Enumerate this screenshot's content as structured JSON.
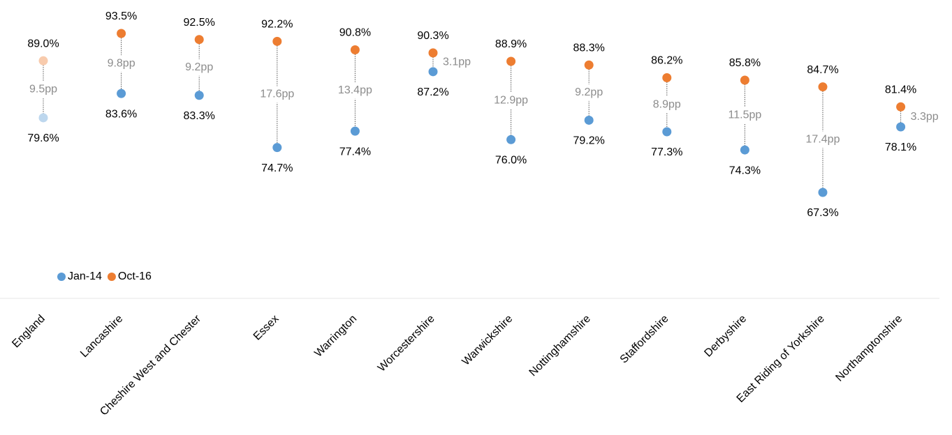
{
  "chart_data": {
    "type": "dumbbell",
    "categories": [
      "England",
      "Lancashire",
      "Cheshire West and Chester",
      "Essex",
      "Warrington",
      "Worcestershire",
      "Warwickshire",
      "Nottinghamshire",
      "Staffordshire",
      "Derbyshire",
      "East Riding of Yorkshire",
      "Northamptonshire"
    ],
    "series": [
      {
        "name": "Jan-14",
        "color": "#5b9bd5",
        "colors": [
          "#bdd7ee",
          "#5b9bd5",
          "#5b9bd5",
          "#5b9bd5",
          "#5b9bd5",
          "#5b9bd5",
          "#5b9bd5",
          "#5b9bd5",
          "#5b9bd5",
          "#5b9bd5",
          "#5b9bd5",
          "#5b9bd5"
        ],
        "values": [
          79.6,
          83.6,
          83.3,
          74.7,
          77.4,
          87.2,
          76.0,
          79.2,
          77.3,
          74.3,
          67.3,
          78.1
        ],
        "value_labels": [
          "79.6%",
          "83.6%",
          "83.3%",
          "74.7%",
          "77.4%",
          "87.2%",
          "76.0%",
          "79.2%",
          "77.3%",
          "74.3%",
          "67.3%",
          "78.1%"
        ]
      },
      {
        "name": "Oct-16",
        "color": "#ed7d31",
        "colors": [
          "#f8cbad",
          "#ed7d31",
          "#ed7d31",
          "#ed7d31",
          "#ed7d31",
          "#ed7d31",
          "#ed7d31",
          "#ed7d31",
          "#ed7d31",
          "#ed7d31",
          "#ed7d31",
          "#ed7d31"
        ],
        "values": [
          89.0,
          93.5,
          92.5,
          92.2,
          90.8,
          90.3,
          88.9,
          88.3,
          86.2,
          85.8,
          84.7,
          81.4
        ],
        "value_labels": [
          "89.0%",
          "93.5%",
          "92.5%",
          "92.2%",
          "90.8%",
          "90.3%",
          "88.9%",
          "88.3%",
          "86.2%",
          "85.8%",
          "84.7%",
          "81.4%"
        ]
      }
    ],
    "gap_labels": [
      "9.5pp",
      "9.8pp",
      "9.2pp",
      "17.6pp",
      "13.4pp",
      "3.1pp",
      "12.9pp",
      "9.2pp",
      "8.9pp",
      "11.5pp",
      "17.4pp",
      "3.3pp"
    ]
  }
}
